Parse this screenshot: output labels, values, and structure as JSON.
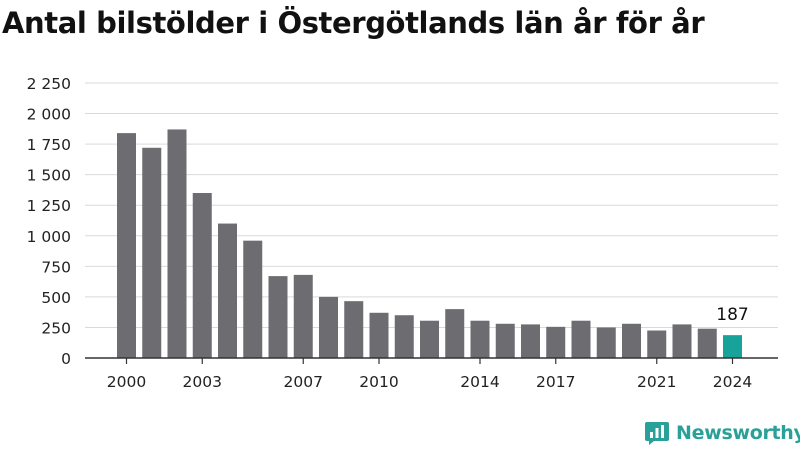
{
  "title": "Antal bilstölder i Östergötlands län år för år",
  "brand": {
    "name": "Newsworthy",
    "icon": "chart-speech-bubble-icon",
    "color": "#2aa198"
  },
  "chart_data": {
    "type": "bar",
    "title": "Antal bilstölder i Östergötlands län år för år",
    "xlabel": "",
    "ylabel": "",
    "categories": [
      "2000",
      "2001",
      "2002",
      "2003",
      "2004",
      "2005",
      "2006",
      "2007",
      "2008",
      "2009",
      "2010",
      "2011",
      "2012",
      "2013",
      "2014",
      "2015",
      "2016",
      "2017",
      "2018",
      "2019",
      "2020",
      "2021",
      "2022",
      "2023",
      "2024"
    ],
    "values": [
      1840,
      1720,
      1870,
      1350,
      1100,
      960,
      670,
      680,
      500,
      465,
      370,
      350,
      305,
      400,
      305,
      280,
      275,
      255,
      305,
      250,
      280,
      225,
      275,
      240,
      187
    ],
    "ylim": [
      0,
      2250
    ],
    "yticks": [
      0,
      250,
      500,
      750,
      1000,
      1250,
      1500,
      1750,
      2000,
      2250
    ],
    "ytick_labels": [
      "0",
      "250",
      "500",
      "750",
      "1 000",
      "1 250",
      "1 500",
      "1 750",
      "2 000",
      "2 250"
    ],
    "xtick_labels": [
      "2000",
      "2003",
      "2007",
      "2010",
      "2014",
      "2017",
      "2021",
      "2024"
    ],
    "highlight": {
      "category": "2024",
      "label": "187"
    },
    "colors": {
      "bar": "#6d6c71",
      "highlight": "#17a29a",
      "grid": "#d9d9d9",
      "axis": "#333333"
    },
    "grid": true,
    "legend": "none"
  }
}
